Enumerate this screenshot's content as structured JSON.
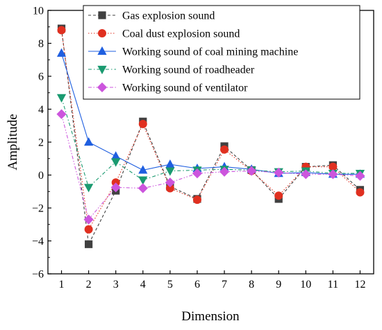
{
  "chart_data": {
    "type": "line",
    "title": "",
    "xlabel": "Dimension",
    "ylabel": "Amplitude",
    "x": [
      1,
      2,
      3,
      4,
      5,
      6,
      7,
      8,
      9,
      10,
      11,
      12
    ],
    "xlim": [
      0.5,
      12.5
    ],
    "ylim": [
      -6,
      10
    ],
    "yticks": [
      -6,
      -4,
      -2,
      0,
      2,
      4,
      6,
      8,
      10
    ],
    "grid": false,
    "legend_position": "top-right",
    "series": [
      {
        "name": "Gas explosion sound",
        "color": "#404040",
        "line_style": "dashed",
        "marker": "square",
        "values": [
          8.9,
          -4.2,
          -0.95,
          3.25,
          -0.7,
          -1.45,
          1.75,
          0.3,
          -1.45,
          0.5,
          0.6,
          -0.9
        ]
      },
      {
        "name": "Coal dust explosion sound",
        "color": "#e03020",
        "line_style": "dotted",
        "marker": "circle",
        "values": [
          8.8,
          -3.3,
          -0.45,
          3.1,
          -0.8,
          -1.5,
          1.55,
          0.25,
          -1.25,
          0.5,
          0.5,
          -1.05
        ]
      },
      {
        "name": "Working sound of coal mining machine",
        "color": "#1f5fe0",
        "line_style": "solid",
        "marker": "triangle-up",
        "values": [
          7.4,
          2.0,
          1.15,
          0.3,
          0.65,
          0.4,
          0.5,
          0.35,
          0.1,
          0.15,
          0.05,
          0.05
        ]
      },
      {
        "name": "Working sound of roadheader",
        "color": "#1a9a70",
        "line_style": "dash-dot",
        "marker": "triangle-down",
        "values": [
          4.7,
          -0.75,
          0.8,
          -0.3,
          0.25,
          0.3,
          0.35,
          0.3,
          0.2,
          0.25,
          0.1,
          0.1
        ]
      },
      {
        "name": "Working sound of ventilator",
        "color": "#cc55dd",
        "line_style": "dash-dot-dot",
        "marker": "diamond",
        "values": [
          3.7,
          -2.7,
          -0.75,
          -0.8,
          -0.45,
          0.1,
          0.2,
          0.25,
          0.15,
          0.05,
          0.05,
          -0.05
        ]
      }
    ]
  }
}
